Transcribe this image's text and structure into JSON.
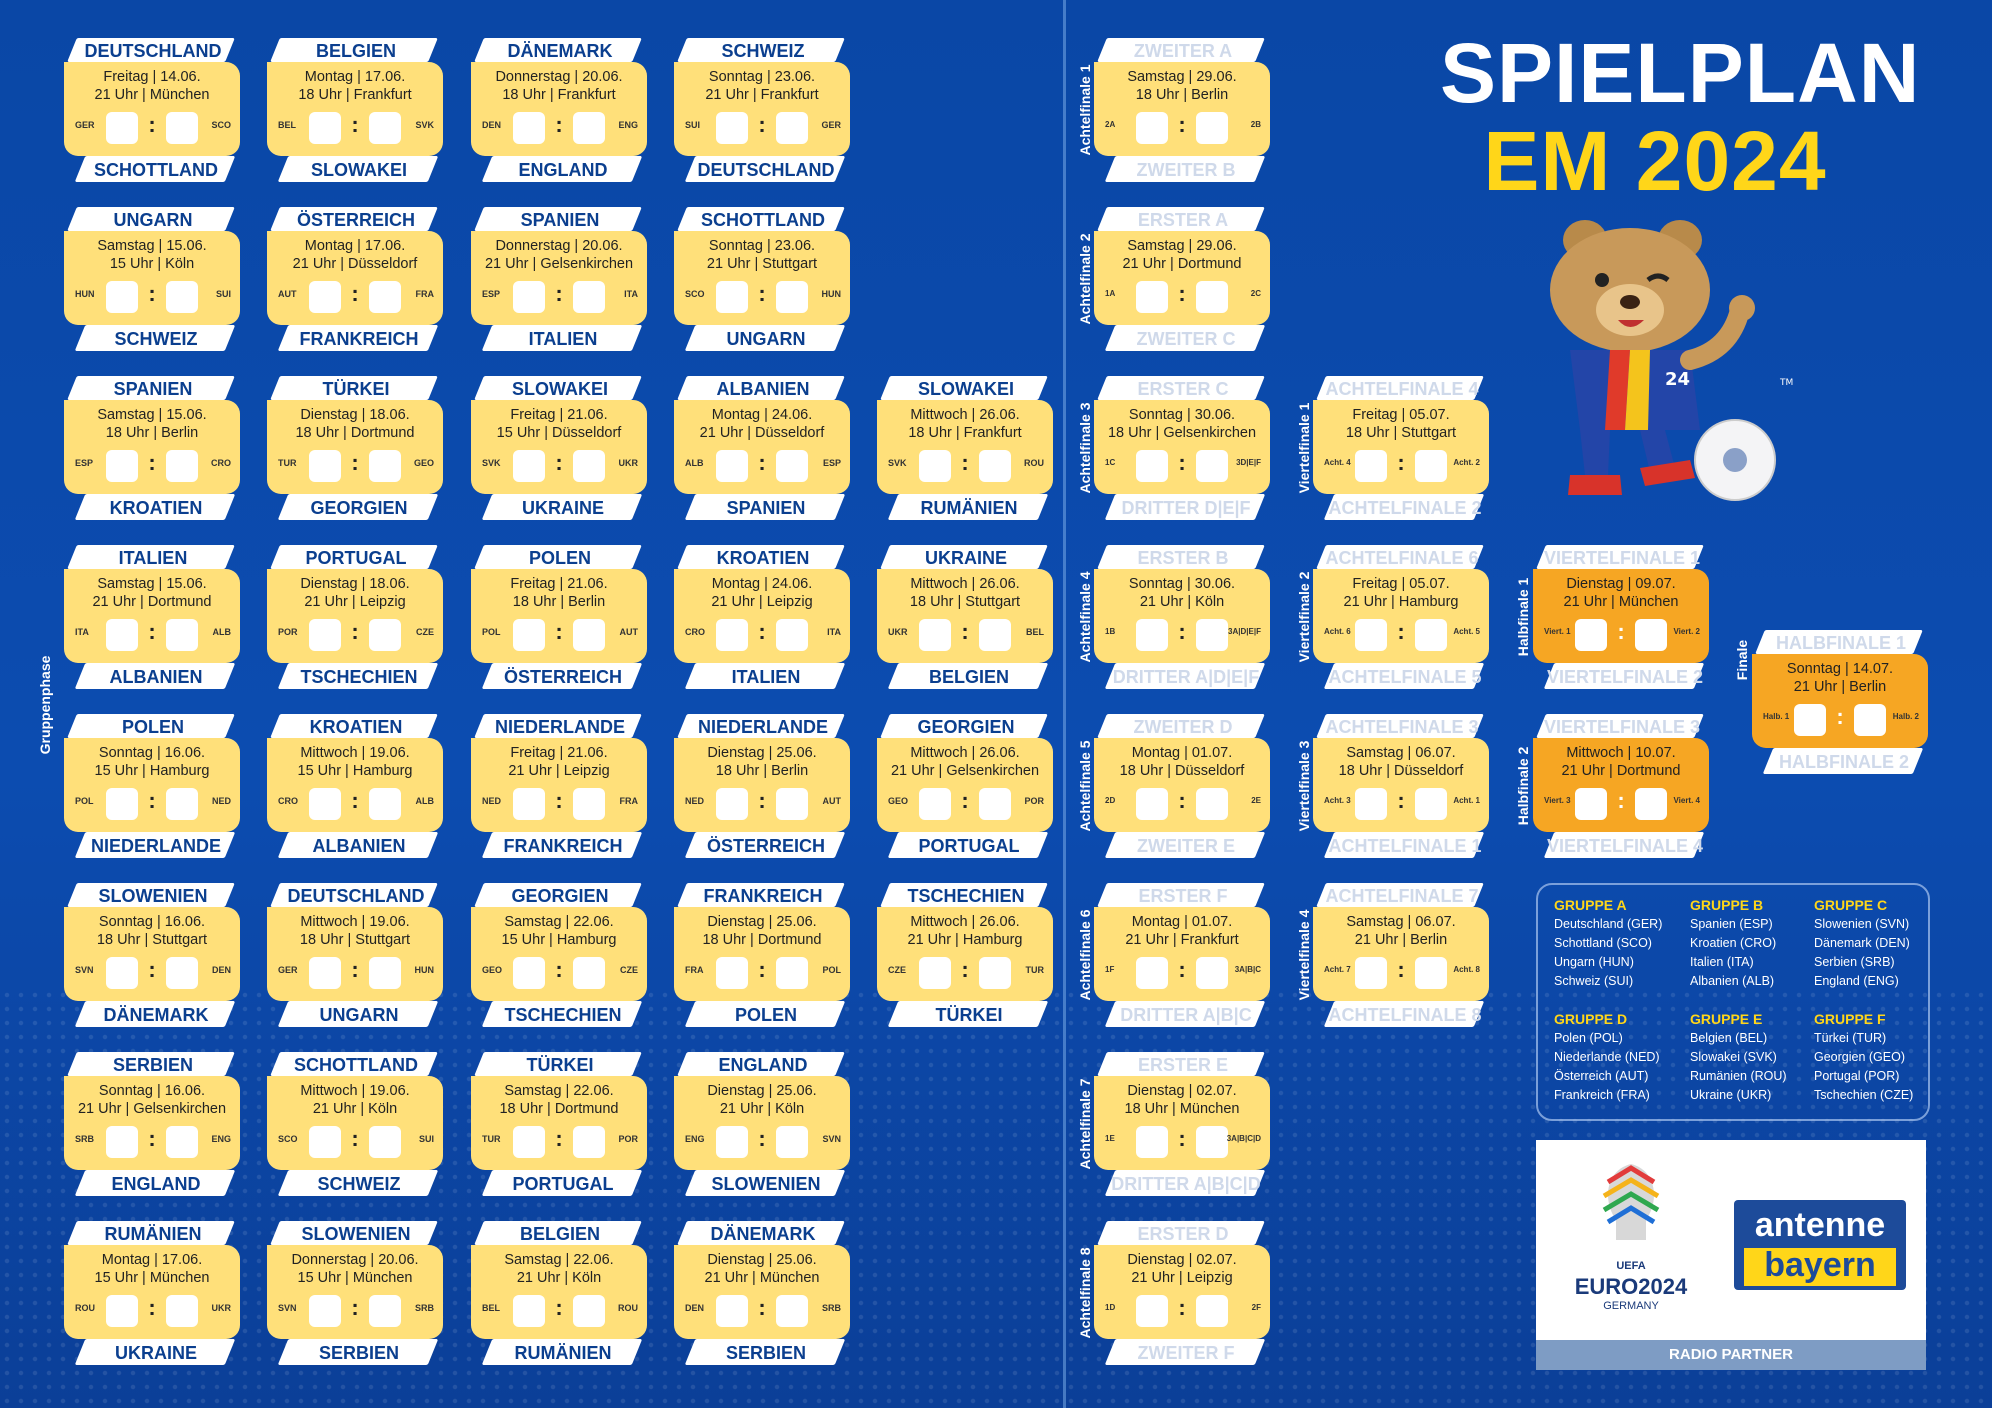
{
  "title": {
    "line1": "SPIELPLAN",
    "line2": "EM 2024"
  },
  "side_labels": {
    "group_phase": "Gruppenphase",
    "r16": [
      "Achtelfinale 1",
      "Achtelfinale 2",
      "Achtelfinale 3",
      "Achtelfinale 4",
      "Achtelfinale 5",
      "Achtelfinale 6",
      "Achtelfinale 7",
      "Achtelfinale 8"
    ],
    "qf": [
      "Viertelfinale 1",
      "Viertelfinale 2",
      "Viertelfinale 3",
      "Viertelfinale 4"
    ],
    "sf": [
      "Halbfinale 1",
      "Halbfinale 2"
    ],
    "final": "Finale"
  },
  "group_matches": [
    [
      {
        "home": "DEUTSCHLAND",
        "away": "SCHOTTLAND",
        "day": "Freitag | 14.06.",
        "time": "21 Uhr | München",
        "a1": "GER",
        "a2": "SCO"
      },
      {
        "home": "UNGARN",
        "away": "SCHWEIZ",
        "day": "Samstag | 15.06.",
        "time": "15 Uhr | Köln",
        "a1": "HUN",
        "a2": "SUI"
      },
      {
        "home": "SPANIEN",
        "away": "KROATIEN",
        "day": "Samstag | 15.06.",
        "time": "18 Uhr | Berlin",
        "a1": "ESP",
        "a2": "CRO"
      },
      {
        "home": "ITALIEN",
        "away": "ALBANIEN",
        "day": "Samstag | 15.06.",
        "time": "21 Uhr | Dortmund",
        "a1": "ITA",
        "a2": "ALB"
      },
      {
        "home": "POLEN",
        "away": "NIEDERLANDE",
        "day": "Sonntag | 16.06.",
        "time": "15 Uhr | Hamburg",
        "a1": "POL",
        "a2": "NED"
      },
      {
        "home": "SLOWENIEN",
        "away": "DÄNEMARK",
        "day": "Sonntag | 16.06.",
        "time": "18 Uhr | Stuttgart",
        "a1": "SVN",
        "a2": "DEN"
      },
      {
        "home": "SERBIEN",
        "away": "ENGLAND",
        "day": "Sonntag | 16.06.",
        "time": "21 Uhr | Gelsenkirchen",
        "a1": "SRB",
        "a2": "ENG"
      },
      {
        "home": "RUMÄNIEN",
        "away": "UKRAINE",
        "day": "Montag | 17.06.",
        "time": "15 Uhr | München",
        "a1": "ROU",
        "a2": "UKR"
      }
    ],
    [
      {
        "home": "BELGIEN",
        "away": "SLOWAKEI",
        "day": "Montag | 17.06.",
        "time": "18 Uhr | Frankfurt",
        "a1": "BEL",
        "a2": "SVK"
      },
      {
        "home": "ÖSTERREICH",
        "away": "FRANKREICH",
        "day": "Montag | 17.06.",
        "time": "21 Uhr | Düsseldorf",
        "a1": "AUT",
        "a2": "FRA"
      },
      {
        "home": "TÜRKEI",
        "away": "GEORGIEN",
        "day": "Dienstag | 18.06.",
        "time": "18 Uhr | Dortmund",
        "a1": "TUR",
        "a2": "GEO"
      },
      {
        "home": "PORTUGAL",
        "away": "TSCHECHIEN",
        "day": "Dienstag | 18.06.",
        "time": "21 Uhr | Leipzig",
        "a1": "POR",
        "a2": "CZE"
      },
      {
        "home": "KROATIEN",
        "away": "ALBANIEN",
        "day": "Mittwoch | 19.06.",
        "time": "15 Uhr | Hamburg",
        "a1": "CRO",
        "a2": "ALB"
      },
      {
        "home": "DEUTSCHLAND",
        "away": "UNGARN",
        "day": "Mittwoch | 19.06.",
        "time": "18 Uhr | Stuttgart",
        "a1": "GER",
        "a2": "HUN"
      },
      {
        "home": "SCHOTTLAND",
        "away": "SCHWEIZ",
        "day": "Mittwoch | 19.06.",
        "time": "21 Uhr | Köln",
        "a1": "SCO",
        "a2": "SUI"
      },
      {
        "home": "SLOWENIEN",
        "away": "SERBIEN",
        "day": "Donnerstag | 20.06.",
        "time": "15 Uhr | München",
        "a1": "SVN",
        "a2": "SRB"
      }
    ],
    [
      {
        "home": "DÄNEMARK",
        "away": "ENGLAND",
        "day": "Donnerstag | 20.06.",
        "time": "18 Uhr | Frankfurt",
        "a1": "DEN",
        "a2": "ENG"
      },
      {
        "home": "SPANIEN",
        "away": "ITALIEN",
        "day": "Donnerstag | 20.06.",
        "time": "21 Uhr | Gelsenkirchen",
        "a1": "ESP",
        "a2": "ITA"
      },
      {
        "home": "SLOWAKEI",
        "away": "UKRAINE",
        "day": "Freitag | 21.06.",
        "time": "15 Uhr | Düsseldorf",
        "a1": "SVK",
        "a2": "UKR"
      },
      {
        "home": "POLEN",
        "away": "ÖSTERREICH",
        "day": "Freitag | 21.06.",
        "time": "18 Uhr | Berlin",
        "a1": "POL",
        "a2": "AUT"
      },
      {
        "home": "NIEDERLANDE",
        "away": "FRANKREICH",
        "day": "Freitag | 21.06.",
        "time": "21 Uhr | Leipzig",
        "a1": "NED",
        "a2": "FRA"
      },
      {
        "home": "GEORGIEN",
        "away": "TSCHECHIEN",
        "day": "Samstag | 22.06.",
        "time": "15 Uhr | Hamburg",
        "a1": "GEO",
        "a2": "CZE"
      },
      {
        "home": "TÜRKEI",
        "away": "PORTUGAL",
        "day": "Samstag | 22.06.",
        "time": "18 Uhr | Dortmund",
        "a1": "TUR",
        "a2": "POR"
      },
      {
        "home": "BELGIEN",
        "away": "RUMÄNIEN",
        "day": "Samstag | 22.06.",
        "time": "21 Uhr | Köln",
        "a1": "BEL",
        "a2": "ROU"
      }
    ],
    [
      {
        "home": "SCHWEIZ",
        "away": "DEUTSCHLAND",
        "day": "Sonntag | 23.06.",
        "time": "21 Uhr | Frankfurt",
        "a1": "SUI",
        "a2": "GER"
      },
      {
        "home": "SCHOTTLAND",
        "away": "UNGARN",
        "day": "Sonntag | 23.06.",
        "time": "21 Uhr | Stuttgart",
        "a1": "SCO",
        "a2": "HUN"
      },
      {
        "home": "ALBANIEN",
        "away": "SPANIEN",
        "day": "Montag | 24.06.",
        "time": "21 Uhr | Düsseldorf",
        "a1": "ALB",
        "a2": "ESP"
      },
      {
        "home": "KROATIEN",
        "away": "ITALIEN",
        "day": "Montag | 24.06.",
        "time": "21 Uhr | Leipzig",
        "a1": "CRO",
        "a2": "ITA"
      },
      {
        "home": "NIEDERLANDE",
        "away": "ÖSTERREICH",
        "day": "Dienstag | 25.06.",
        "time": "18 Uhr | Berlin",
        "a1": "NED",
        "a2": "AUT"
      },
      {
        "home": "FRANKREICH",
        "away": "POLEN",
        "day": "Dienstag | 25.06.",
        "time": "18 Uhr | Dortmund",
        "a1": "FRA",
        "a2": "POL"
      },
      {
        "home": "ENGLAND",
        "away": "SLOWENIEN",
        "day": "Dienstag | 25.06.",
        "time": "21 Uhr | Köln",
        "a1": "ENG",
        "a2": "SVN"
      },
      {
        "home": "DÄNEMARK",
        "away": "SERBIEN",
        "day": "Dienstag | 25.06.",
        "time": "21 Uhr | München",
        "a1": "DEN",
        "a2": "SRB"
      }
    ],
    [
      {
        "home": "SLOWAKEI",
        "away": "RUMÄNIEN",
        "day": "Mittwoch | 26.06.",
        "time": "18 Uhr | Frankfurt",
        "a1": "SVK",
        "a2": "ROU"
      },
      {
        "home": "UKRAINE",
        "away": "BELGIEN",
        "day": "Mittwoch | 26.06.",
        "time": "18 Uhr | Stuttgart",
        "a1": "UKR",
        "a2": "BEL"
      },
      {
        "home": "GEORGIEN",
        "away": "PORTUGAL",
        "day": "Mittwoch | 26.06.",
        "time": "21 Uhr | Gelsenkirchen",
        "a1": "GEO",
        "a2": "POR"
      },
      {
        "home": "TSCHECHIEN",
        "away": "TÜRKEI",
        "day": "Mittwoch | 26.06.",
        "time": "21 Uhr | Hamburg",
        "a1": "CZE",
        "a2": "TUR"
      }
    ]
  ],
  "round_of_16": [
    {
      "home": "ZWEITER A",
      "away": "ZWEITER B",
      "day": "Samstag | 29.06.",
      "time": "18 Uhr | Berlin",
      "a1": "2A",
      "a2": "2B"
    },
    {
      "home": "ERSTER A",
      "away": "ZWEITER C",
      "day": "Samstag | 29.06.",
      "time": "21 Uhr | Dortmund",
      "a1": "1A",
      "a2": "2C"
    },
    {
      "home": "ERSTER C",
      "away": "DRITTER D|E|F",
      "day": "Sonntag | 30.06.",
      "time": "18 Uhr | Gelsenkirchen",
      "a1": "1C",
      "a2": "3D|E|F"
    },
    {
      "home": "ERSTER B",
      "away": "DRITTER A|D|E|F",
      "day": "Sonntag | 30.06.",
      "time": "21 Uhr | Köln",
      "a1": "1B",
      "a2": "3A|D|E|F"
    },
    {
      "home": "ZWEITER D",
      "away": "ZWEITER E",
      "day": "Montag | 01.07.",
      "time": "18 Uhr | Düsseldorf",
      "a1": "2D",
      "a2": "2E"
    },
    {
      "home": "ERSTER F",
      "away": "DRITTER A|B|C",
      "day": "Montag | 01.07.",
      "time": "21 Uhr | Frankfurt",
      "a1": "1F",
      "a2": "3A|B|C"
    },
    {
      "home": "ERSTER E",
      "away": "DRITTER A|B|C|D",
      "day": "Dienstag | 02.07.",
      "time": "18 Uhr | München",
      "a1": "1E",
      "a2": "3A|B|C|D"
    },
    {
      "home": "ERSTER D",
      "away": "ZWEITER F",
      "day": "Dienstag | 02.07.",
      "time": "21 Uhr | Leipzig",
      "a1": "1D",
      "a2": "2F"
    }
  ],
  "quarter_finals": [
    {
      "home": "ACHTELFINALE 4",
      "away": "ACHTELFINALE 2",
      "day": "Freitag | 05.07.",
      "time": "18 Uhr | Stuttgart",
      "a1": "Acht. 4",
      "a2": "Acht. 2"
    },
    {
      "home": "ACHTELFINALE 6",
      "away": "ACHTELFINALE 5",
      "day": "Freitag | 05.07.",
      "time": "21 Uhr | Hamburg",
      "a1": "Acht. 6",
      "a2": "Acht. 5"
    },
    {
      "home": "ACHTELFINALE 3",
      "away": "ACHTELFINALE 1",
      "day": "Samstag | 06.07.",
      "time": "18 Uhr | Düsseldorf",
      "a1": "Acht. 3",
      "a2": "Acht. 1"
    },
    {
      "home": "ACHTELFINALE 7",
      "away": "ACHTELFINALE 8",
      "day": "Samstag | 06.07.",
      "time": "21 Uhr | Berlin",
      "a1": "Acht. 7",
      "a2": "Acht. 8"
    }
  ],
  "semi_finals": [
    {
      "home": "VIERTELFINALE 1",
      "away": "VIERTELFINALE 2",
      "day": "Dienstag | 09.07.",
      "time": "21 Uhr | München",
      "a1": "Viert. 1",
      "a2": "Viert. 2"
    },
    {
      "home": "VIERTELFINALE 3",
      "away": "VIERTELFINALE 4",
      "day": "Mittwoch | 10.07.",
      "time": "21 Uhr | Dortmund",
      "a1": "Viert. 3",
      "a2": "Viert. 4"
    }
  ],
  "final": {
    "home": "HALBFINALE 1",
    "away": "HALBFINALE 2",
    "day": "Sonntag | 14.07.",
    "time": "21 Uhr | Berlin",
    "a1": "Halb. 1",
    "a2": "Halb. 2"
  },
  "groups": [
    {
      "name": "GRUPPE A",
      "teams": [
        "Deutschland (GER)",
        "Schottland (SCO)",
        "Ungarn (HUN)",
        "Schweiz (SUI)"
      ]
    },
    {
      "name": "GRUPPE B",
      "teams": [
        "Spanien (ESP)",
        "Kroatien (CRO)",
        "Italien (ITA)",
        "Albanien (ALB)"
      ]
    },
    {
      "name": "GRUPPE C",
      "teams": [
        "Slowenien (SVN)",
        "Dänemark (DEN)",
        "Serbien (SRB)",
        "England (ENG)"
      ]
    },
    {
      "name": "GRUPPE D",
      "teams": [
        "Polen (POL)",
        "Niederlande (NED)",
        "Österreich (AUT)",
        "Frankreich (FRA)"
      ]
    },
    {
      "name": "GRUPPE E",
      "teams": [
        "Belgien (BEL)",
        "Slowakei (SVK)",
        "Rumänien (ROU)",
        "Ukraine (UKR)"
      ]
    },
    {
      "name": "GRUPPE F",
      "teams": [
        "Türkei (TUR)",
        "Georgien (GEO)",
        "Portugal (POR)",
        "Tschechien (CZE)"
      ]
    }
  ],
  "sponsor": {
    "uefa_text": "UEFA",
    "euro_text": "EURO2024",
    "germany_text": "GERMANY",
    "antenne": "antenne",
    "bayern": "bayern",
    "bar": "RADIO PARTNER"
  },
  "mascot": {
    "jersey_number": "24",
    "tm": "TM"
  },
  "colors": {
    "background": "#0b46a5",
    "card": "#ffe07a",
    "orange": "#f6a623",
    "accent_yellow": "#ffd619",
    "navy_text": "#0b3f8f"
  }
}
